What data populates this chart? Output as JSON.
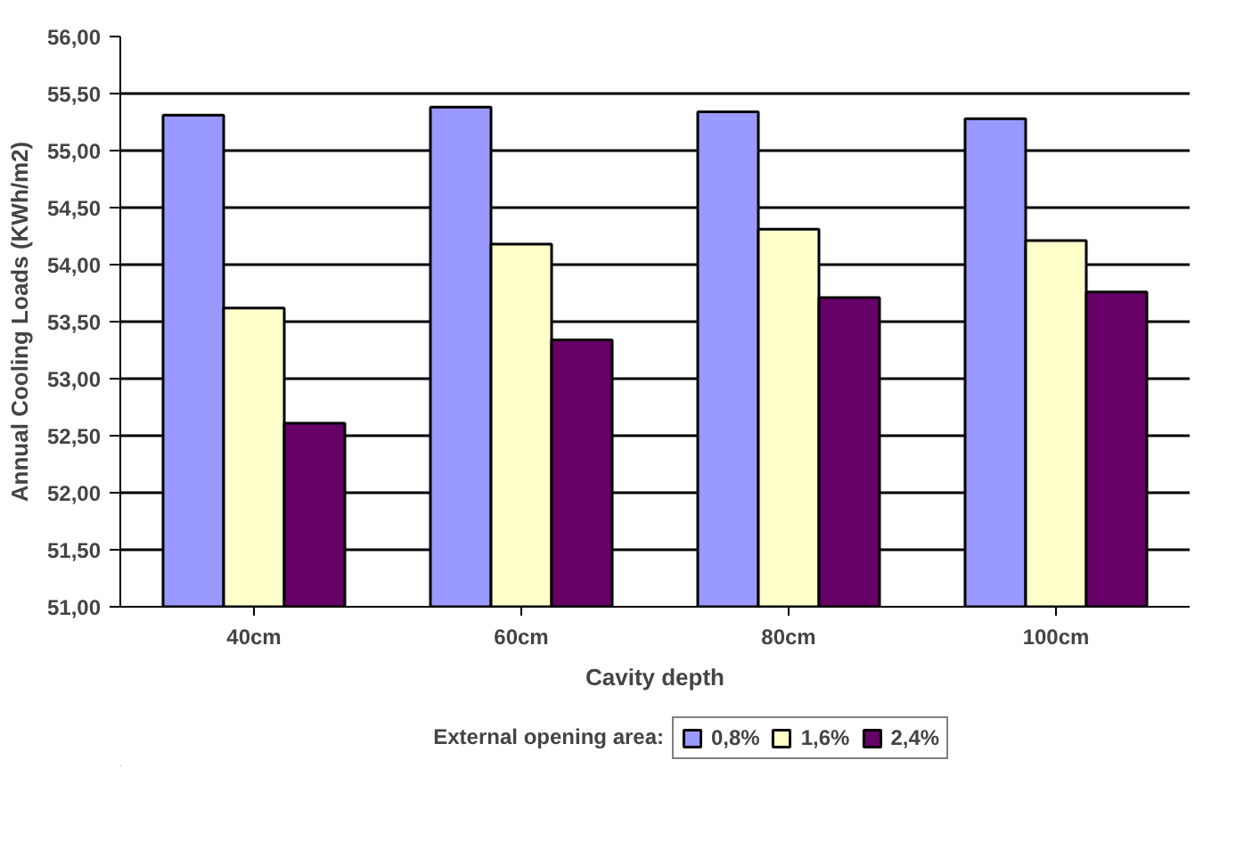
{
  "chart_data": {
    "type": "bar",
    "xlabel": "Cavity depth",
    "ylabel": "Annual Cooling Loads (KWh/m2)",
    "legend_title": "External opening area:",
    "categories": [
      "40cm",
      "60cm",
      "80cm",
      "100cm"
    ],
    "series": [
      {
        "name": "0,8%",
        "color": "#9999ff",
        "values": [
          55.31,
          55.38,
          55.34,
          55.28
        ]
      },
      {
        "name": "1,6%",
        "color": "#ffffcc",
        "values": [
          53.62,
          54.18,
          54.31,
          54.21
        ]
      },
      {
        "name": "2,4%",
        "color": "#660066",
        "values": [
          52.61,
          53.34,
          53.71,
          53.76
        ]
      }
    ],
    "ylim": [
      51,
      56
    ],
    "yticks": [
      {
        "value": 51,
        "label": "51,00"
      },
      {
        "value": 51.5,
        "label": "51,50"
      },
      {
        "value": 52,
        "label": "52,00"
      },
      {
        "value": 52.5,
        "label": "52,50"
      },
      {
        "value": 53,
        "label": "53,00"
      },
      {
        "value": 53.5,
        "label": "53,50"
      },
      {
        "value": 54,
        "label": "54,00"
      },
      {
        "value": 54.5,
        "label": "54,50"
      },
      {
        "value": 55,
        "label": "55,00"
      },
      {
        "value": 55.5,
        "label": "55,50"
      },
      {
        "value": 56,
        "label": "56,00"
      }
    ],
    "grid": "y",
    "legend": "bottom"
  }
}
